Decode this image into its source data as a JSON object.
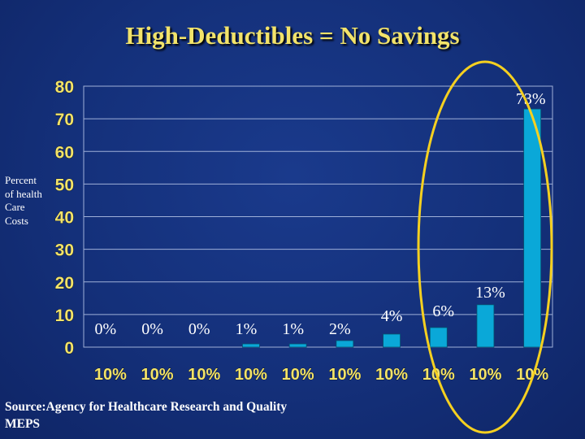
{
  "title": "High-Deductibles = No Savings",
  "source": [
    "Source:Agency for Healthcare Research and Quality",
    "MEPS"
  ],
  "colors": {
    "background": "#14307a",
    "title": "#f2e36a",
    "bar": "#0aa8d8",
    "grid": "#9fb0d8",
    "highlight": "#f5d020",
    "tick_labels": "#f2e36a"
  },
  "chart_data": {
    "type": "bar",
    "title": "High-Deductibles = No Savings",
    "ylabel": "Percent of health Care Costs",
    "xlabel": "",
    "ylim": [
      0,
      80
    ],
    "yticks": [
      0,
      10,
      20,
      30,
      40,
      50,
      60,
      70,
      80
    ],
    "grid": true,
    "categories": [
      "10%",
      "10%",
      "10%",
      "10%",
      "10%",
      "10%",
      "10%",
      "10%",
      "10%",
      "10%"
    ],
    "values": [
      0,
      0,
      0,
      1,
      1,
      2,
      4,
      6,
      13,
      73
    ],
    "data_labels": [
      "0%",
      "0%",
      "0%",
      "1%",
      "1%",
      "2%",
      "4%",
      "6%",
      "13%",
      "73%"
    ],
    "highlight": "ellipse around the last three bars"
  }
}
